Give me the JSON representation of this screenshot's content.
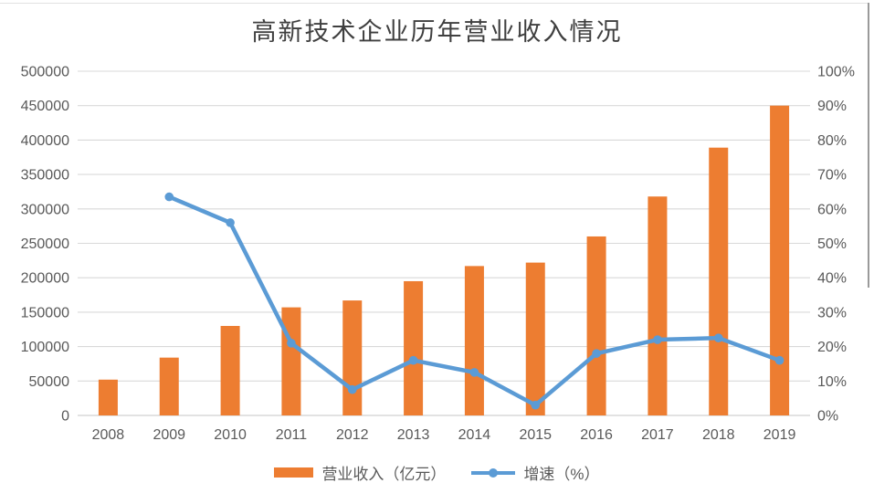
{
  "title": "高新技术企业历年营业收入情况",
  "chart_data": {
    "type": "bar",
    "subtype": "combo-bar-line-dual-axis",
    "title": "高新技术企业历年营业收入情况",
    "categories": [
      "2008",
      "2009",
      "2010",
      "2011",
      "2012",
      "2013",
      "2014",
      "2015",
      "2016",
      "2017",
      "2018",
      "2019"
    ],
    "series": [
      {
        "name": "营业收入（亿元）",
        "type": "bar",
        "axis": "left",
        "color": "#ED7D31",
        "values": [
          52000,
          84000,
          130000,
          157000,
          167000,
          195000,
          217000,
          222000,
          260000,
          318000,
          389000,
          450000
        ]
      },
      {
        "name": "增速（%）",
        "type": "line",
        "axis": "right",
        "color": "#5B9BD5",
        "values": [
          null,
          63.5,
          56,
          21,
          7.5,
          16,
          12.5,
          3,
          18,
          22,
          22.5,
          16
        ]
      }
    ],
    "left_axis": {
      "min": 0,
      "max": 500000,
      "step": 50000,
      "labels": [
        "0",
        "50000",
        "100000",
        "150000",
        "200000",
        "250000",
        "300000",
        "350000",
        "400000",
        "450000",
        "500000"
      ]
    },
    "right_axis": {
      "min": 0,
      "max": 100,
      "step": 10,
      "labels": [
        "0%",
        "10%",
        "20%",
        "30%",
        "40%",
        "50%",
        "60%",
        "70%",
        "80%",
        "90%",
        "100%"
      ]
    },
    "grid": true,
    "legend_position": "bottom",
    "colors": {
      "grid": "#D9D9D9",
      "axis_line": "#D0D0D0",
      "axis_text": "#595959",
      "title_text": "#3F3F3F"
    }
  }
}
